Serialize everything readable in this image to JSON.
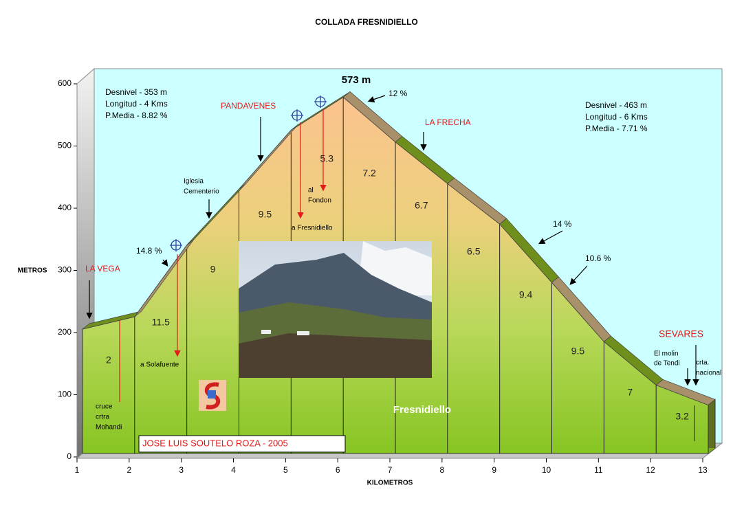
{
  "chart_data": {
    "type": "area",
    "title": "COLLADA FRESNIDIELLO",
    "xlabel": "KILOMETROS",
    "ylabel": "METROS",
    "x": [
      1,
      2,
      3,
      4,
      5,
      6,
      7,
      8,
      9,
      10,
      11,
      12,
      13
    ],
    "values": [
      200,
      220,
      335,
      425,
      520,
      573,
      501,
      434,
      369,
      275,
      180,
      110,
      78
    ],
    "gradients": [
      2,
      11.5,
      9,
      9.5,
      5.3,
      7.2,
      6.7,
      6.5,
      9.4,
      9.5,
      7,
      3.2
    ],
    "xlim": [
      1,
      13
    ],
    "ylim": [
      0,
      600
    ],
    "xticks": [
      1,
      2,
      3,
      4,
      5,
      6,
      7,
      8,
      9,
      10,
      11,
      12,
      13
    ],
    "yticks": [
      0,
      100,
      200,
      300,
      400,
      500,
      600
    ],
    "ridge_colors": [
      "#6f8f1c",
      "#a8906a"
    ],
    "peak_label": "573 m",
    "stats_left": [
      "Desnivel - 353  m",
      "Longitud - 4 Kms",
      "P.Media - 8.82 %"
    ],
    "stats_right": [
      "Desnivel - 463 m",
      "Longitud - 6 Kms",
      "P.Media - 7.71 %"
    ],
    "places": [
      "LA VEGA",
      "PANDAVENES",
      "LA FRECHA",
      "SEVARES"
    ],
    "notes": [
      "12 %",
      "14.8 %",
      "14 %",
      "10.6 %",
      "Iglesia",
      "Cementerio",
      "al",
      "Fondon",
      "a Fresnidiello",
      "a Solafuente",
      "cruce",
      "crtra",
      "Mohandi",
      "El molin",
      "de Tendi",
      "crta.",
      "nacional"
    ],
    "photo_caption": "Fresnidiello",
    "author": "JOSE LUIS SOUTELO ROZA - 2005"
  }
}
